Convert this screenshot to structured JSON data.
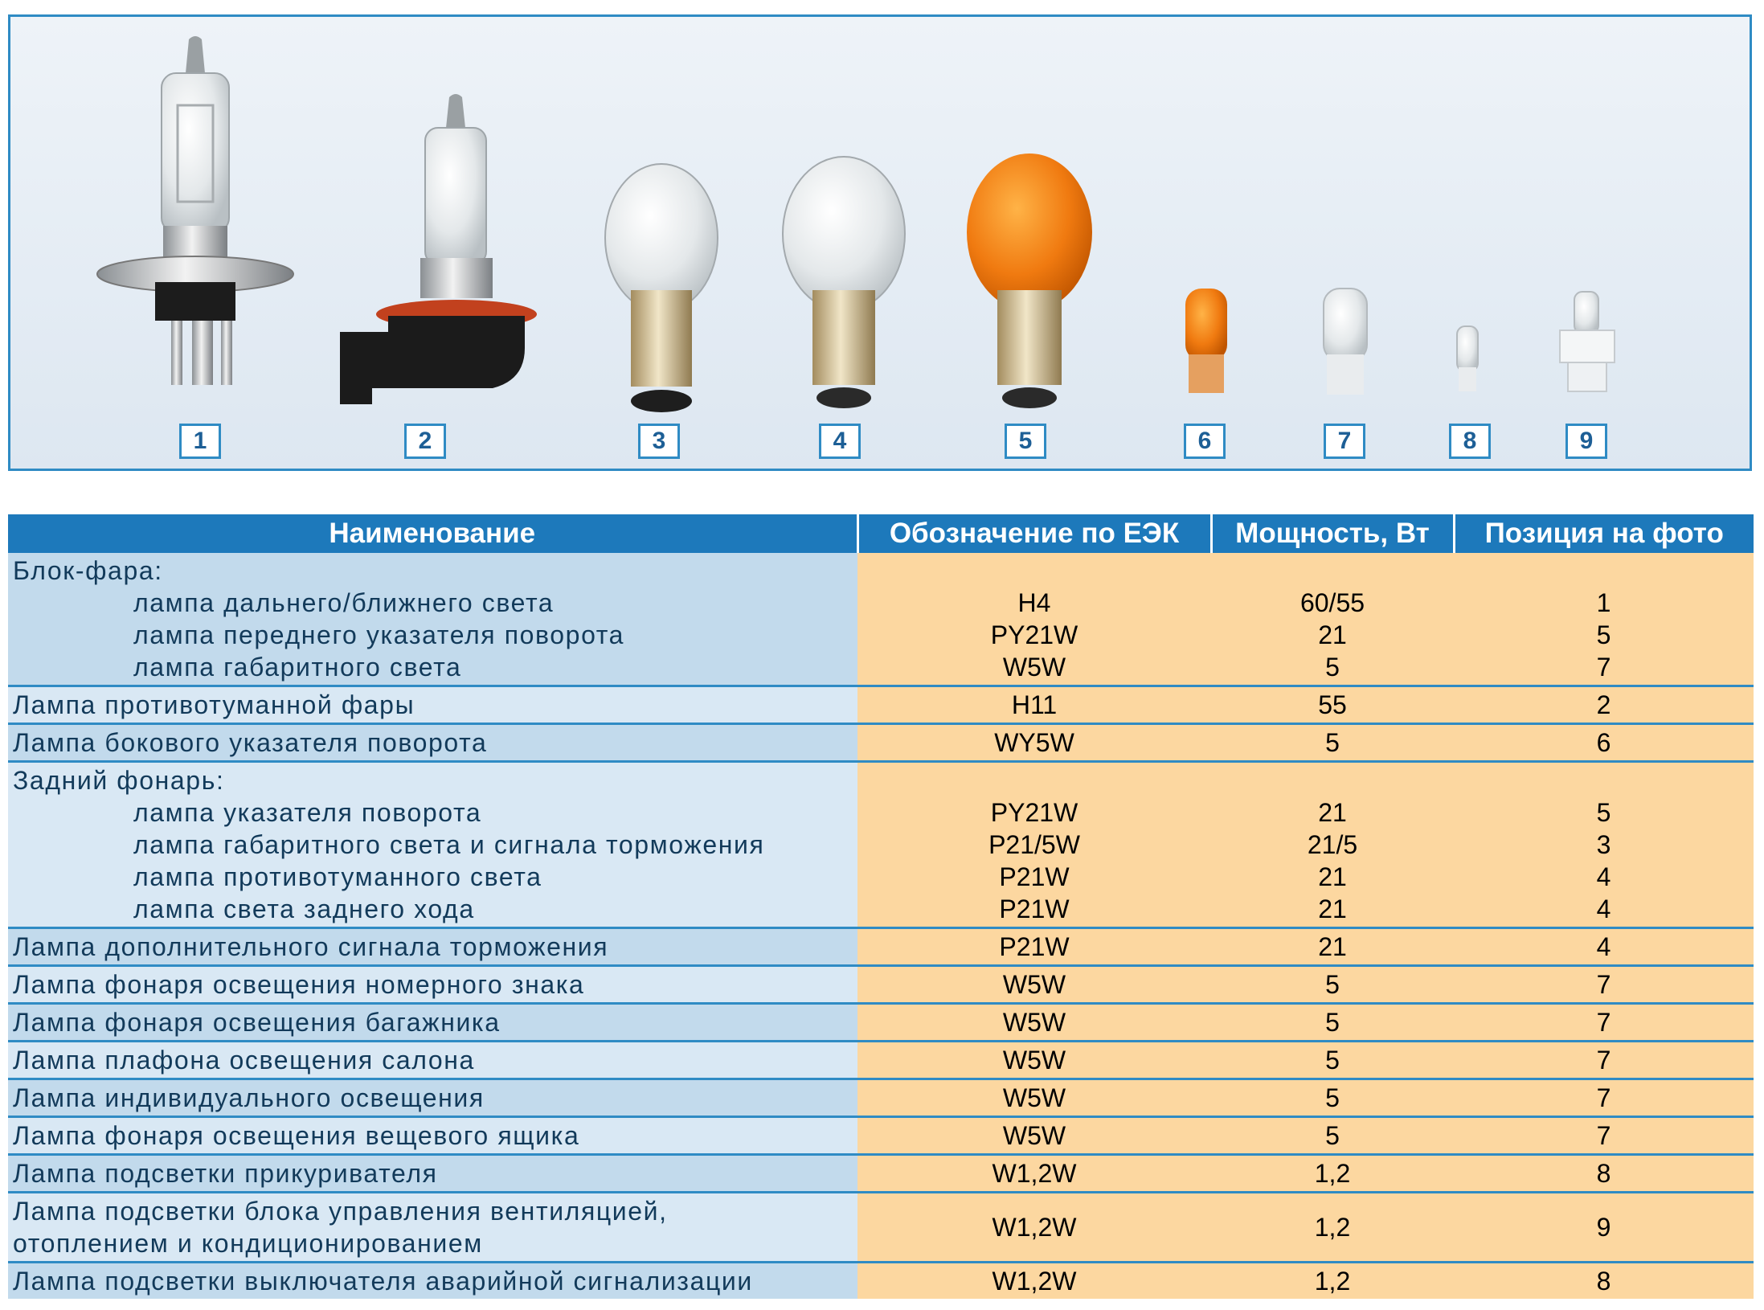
{
  "photo": {
    "labels": [
      "1",
      "2",
      "3",
      "4",
      "5",
      "6",
      "7",
      "8",
      "9"
    ]
  },
  "table": {
    "headers": [
      "Наименование",
      "Обозначение по ЕЭК",
      "Мощность, Вт",
      "Позиция на фото"
    ],
    "rows": [
      {
        "group": "Блок-фара:",
        "items": [
          {
            "name": "лампа дальнего/ближнего света",
            "code": "H4",
            "power": "60/55",
            "pos": "1"
          },
          {
            "name": "лампа переднего указателя поворота",
            "code": "PY21W",
            "power": "21",
            "pos": "5"
          },
          {
            "name": "лампа габаритного света",
            "code": "W5W",
            "power": "5",
            "pos": "7"
          }
        ]
      },
      {
        "name": "Лампа противотуманной фары",
        "code": "H11",
        "power": "55",
        "pos": "2"
      },
      {
        "name": "Лампа бокового указателя поворота",
        "code": "WY5W",
        "power": "5",
        "pos": "6"
      },
      {
        "group": "Задний фонарь:",
        "items": [
          {
            "name": "лампа указателя поворота",
            "code": "PY21W",
            "power": "21",
            "pos": "5"
          },
          {
            "name": "лампа габаритного света и сигнала торможения",
            "code": "P21/5W",
            "power": "21/5",
            "pos": "3"
          },
          {
            "name": "лампа противотуманного света",
            "code": "P21W",
            "power": "21",
            "pos": "4"
          },
          {
            "name": "лампа света заднего хода",
            "code": "P21W",
            "power": "21",
            "pos": "4"
          }
        ]
      },
      {
        "name": "Лампа дополнительного сигнала торможения",
        "code": "P21W",
        "power": "21",
        "pos": "4"
      },
      {
        "name": "Лампа фонаря освещения номерного знака",
        "code": "W5W",
        "power": "5",
        "pos": "7"
      },
      {
        "name": "Лампа фонаря освещения багажника",
        "code": "W5W",
        "power": "5",
        "pos": "7"
      },
      {
        "name": "Лампа плафона освещения салона",
        "code": "W5W",
        "power": "5",
        "pos": "7"
      },
      {
        "name": "Лампа индивидуального освещения",
        "code": "W5W",
        "power": "5",
        "pos": "7"
      },
      {
        "name": "Лампа фонаря освещения вещевого ящика",
        "code": "W5W",
        "power": "5",
        "pos": "7"
      },
      {
        "name": "Лампа подсветки прикуривателя",
        "code": "W1,2W",
        "power": "1,2",
        "pos": "8"
      },
      {
        "name_lines": [
          "Лампа подсветки блока управления вентиляцией,",
          "отоплением и кондиционированием"
        ],
        "code": "W1,2W",
        "power": "1,2",
        "pos": "9"
      },
      {
        "name": "Лампа подсветки выключателя аварийной сигнализации",
        "code": "W1,2W",
        "power": "1,2",
        "pos": "8"
      }
    ]
  }
}
